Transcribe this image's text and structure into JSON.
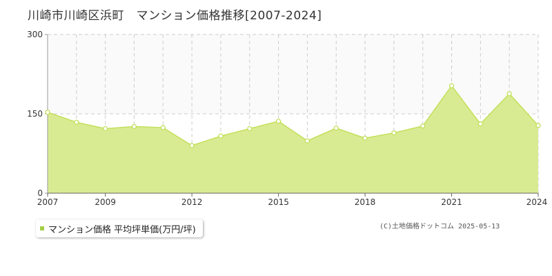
{
  "title": "川崎市川崎区浜町　マンション価格推移[2007-2024]",
  "legend": {
    "label": "マンション価格 平均坪単価(万円/坪)"
  },
  "copyright": "(C)土地価格ドットコム 2025-05-13",
  "colors": {
    "fill": "#d9eb92",
    "line": "#c2e05a",
    "marker_fill": "#ffffff",
    "swatch": "#a3cf45",
    "grid": "#cccccc",
    "axis": "#999999"
  },
  "chart_data": {
    "type": "area",
    "title": "川崎市川崎区浜町　マンション価格推移[2007-2024]",
    "xlabel": "",
    "ylabel": "",
    "ylim": [
      0,
      300
    ],
    "yticks": [
      0,
      150,
      300
    ],
    "xticks": [
      2007,
      2009,
      2012,
      2015,
      2018,
      2021,
      2024
    ],
    "grid": true,
    "legend_position": "bottom-left",
    "x": [
      2007,
      2008,
      2009,
      2010,
      2011,
      2012,
      2013,
      2014,
      2015,
      2016,
      2017,
      2018,
      2019,
      2020,
      2021,
      2022,
      2023,
      2024
    ],
    "series": [
      {
        "name": "マンション価格 平均坪単価(万円/坪)",
        "values": [
          153,
          134,
          122,
          126,
          124,
          90,
          108,
          122,
          136,
          99,
          123,
          104,
          114,
          127,
          203,
          131,
          188,
          128
        ]
      }
    ]
  }
}
